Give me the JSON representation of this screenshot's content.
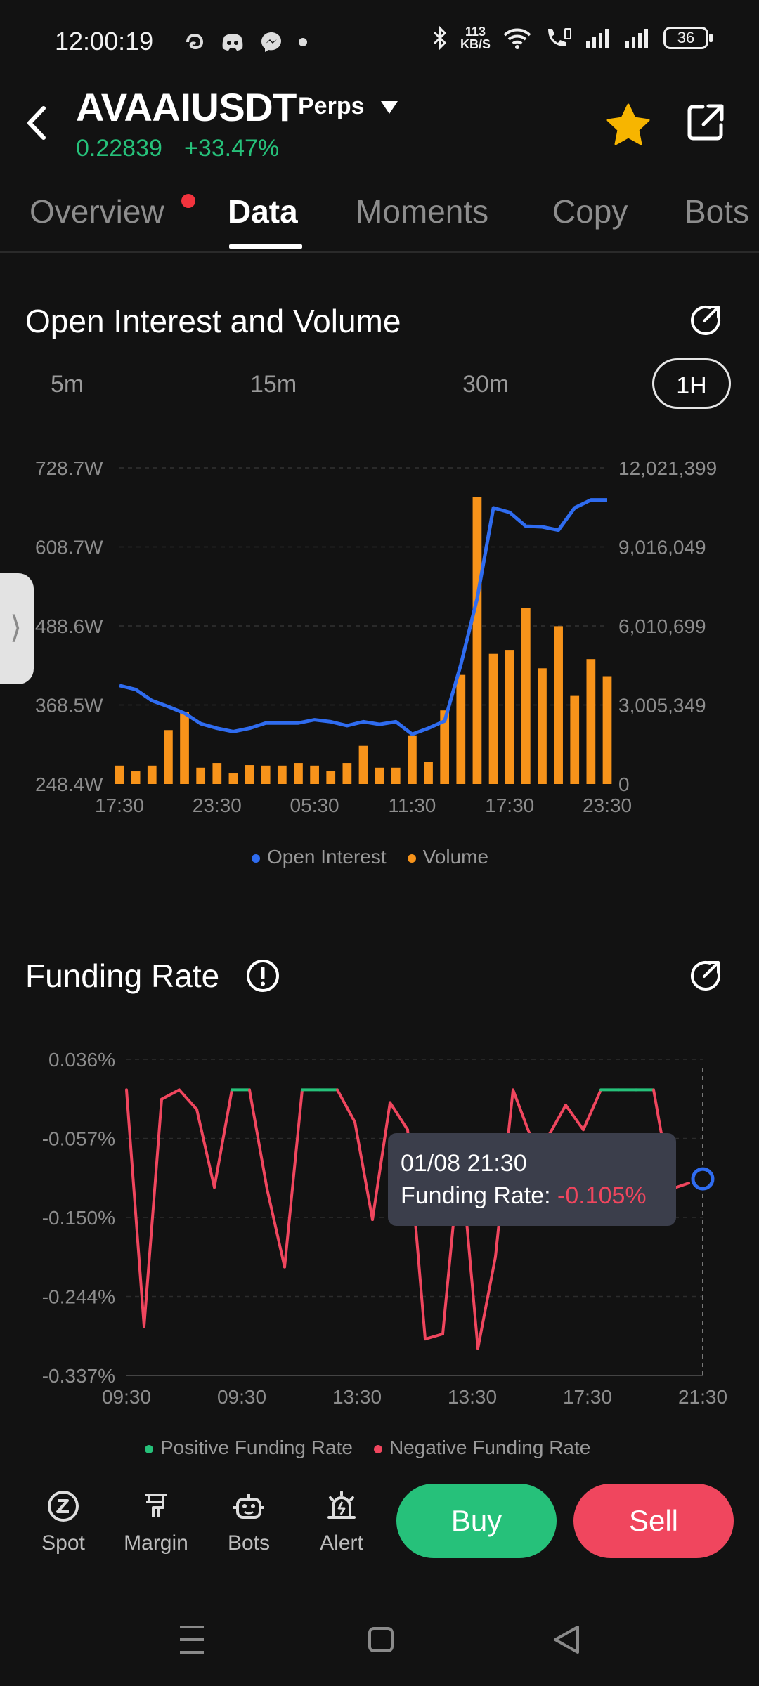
{
  "status_bar": {
    "time": "12:00:19",
    "net_speed_value": "113",
    "net_speed_unit": "KB/S",
    "battery": "36",
    "icons": [
      "threads-icon",
      "discord-icon",
      "messenger-icon",
      "dot-icon",
      "bluetooth-icon",
      "wifi-icon",
      "wifi-call-icon",
      "signal-icon",
      "signal-icon-2"
    ]
  },
  "header": {
    "symbol": "AVAAIUSDT",
    "contract_type": "Perps",
    "price": "0.22839",
    "change": "+33.47%",
    "accent_up": "#26c17a",
    "accent_down": "#f0465e"
  },
  "tabs": [
    {
      "label": "Overview",
      "active": false,
      "dot": true
    },
    {
      "label": "Data",
      "active": true
    },
    {
      "label": "Moments",
      "active": false
    },
    {
      "label": "Copy",
      "active": false
    },
    {
      "label": "Bots",
      "active": false
    }
  ],
  "open_interest_section": {
    "title": "Open Interest and Volume",
    "ranges": [
      "5m",
      "15m",
      "30m",
      "1H"
    ],
    "active_range": "1H",
    "legend_open_interest": "Open Interest",
    "legend_volume": "Volume"
  },
  "funding_section": {
    "title": "Funding Rate",
    "legend_positive": "Positive Funding Rate",
    "legend_negative": "Negative Funding Rate",
    "tooltip_time": "01/08 21:30",
    "tooltip_label": "Funding Rate: ",
    "tooltip_value": "-0.105%"
  },
  "bottom_bar": {
    "items": [
      {
        "label": "Spot",
        "icon": "spot-icon"
      },
      {
        "label": "Margin",
        "icon": "margin-icon"
      },
      {
        "label": "Bots",
        "icon": "bots-icon"
      },
      {
        "label": "Alert",
        "icon": "alert-icon"
      }
    ],
    "buy": "Buy",
    "sell": "Sell"
  },
  "chart_data": [
    {
      "type": "bar+line",
      "title": "Open Interest and Volume",
      "x_tick_labels": [
        "17:30",
        "23:30",
        "05:30",
        "11:30",
        "17:30",
        "23:30"
      ],
      "y_left_tick_labels": [
        "728.7W",
        "608.7W",
        "488.6W",
        "368.5W",
        "248.4W"
      ],
      "y_right_tick_labels": [
        "12,021,399",
        "9,016,049",
        "6,010,699",
        "3,005,349",
        "0"
      ],
      "ylim_left": [
        248.4,
        728.7
      ],
      "ylim_right": [
        0,
        12021399
      ],
      "grid": true,
      "legend_placement": "bottom-center",
      "series": [
        {
          "name": "Open Interest",
          "type": "line",
          "color": "#2f6cf0",
          "axis": "left",
          "unit": "W",
          "values": [
            398,
            392,
            375,
            366,
            356,
            340,
            333,
            328,
            333,
            341,
            341,
            341,
            346,
            343,
            337,
            343,
            339,
            343,
            324,
            333,
            344,
            430,
            530,
            668,
            661,
            640,
            639,
            634,
            668,
            680,
            680
          ]
        },
        {
          "name": "Volume",
          "type": "bar",
          "color": "#f7931a",
          "axis": "right",
          "values": [
            700000,
            480000,
            700000,
            2050000,
            2750000,
            620000,
            800000,
            400000,
            720000,
            700000,
            700000,
            800000,
            700000,
            500000,
            800000,
            1450000,
            620000,
            620000,
            1850000,
            850000,
            2800000,
            4150000,
            10900000,
            4950000,
            5100000,
            6700000,
            4400000,
            6000000,
            3350000,
            4750000,
            4100000
          ]
        }
      ]
    },
    {
      "type": "line",
      "title": "Funding Rate",
      "x_tick_labels": [
        "09:30",
        "09:30",
        "13:30",
        "13:30",
        "17:30",
        "21:30"
      ],
      "y_tick_labels": [
        "0.036%",
        "-0.057%",
        "-0.150%",
        "-0.244%",
        "-0.337%"
      ],
      "ylim": [
        -0.337,
        0.036
      ],
      "grid": true,
      "legend_placement": "bottom-center",
      "positive_color": "#26c17a",
      "negative_color": "#f0465e",
      "series": [
        {
          "name": "Funding Rate",
          "unit": "%",
          "values": [
            0.0,
            -0.279,
            -0.011,
            0.0,
            -0.023,
            -0.115,
            0.0,
            0.0,
            -0.117,
            -0.209,
            0.0,
            0.0,
            0.0,
            -0.038,
            -0.153,
            -0.015,
            -0.047,
            -0.294,
            -0.288,
            -0.072,
            -0.305,
            -0.197,
            0.0,
            -0.055,
            -0.055,
            -0.018,
            -0.047,
            0.0,
            0.0,
            0.0,
            0.0,
            -0.117,
            -0.11
          ]
        }
      ],
      "highlight": {
        "time": "01/08 21:30",
        "value": -0.105
      }
    }
  ]
}
